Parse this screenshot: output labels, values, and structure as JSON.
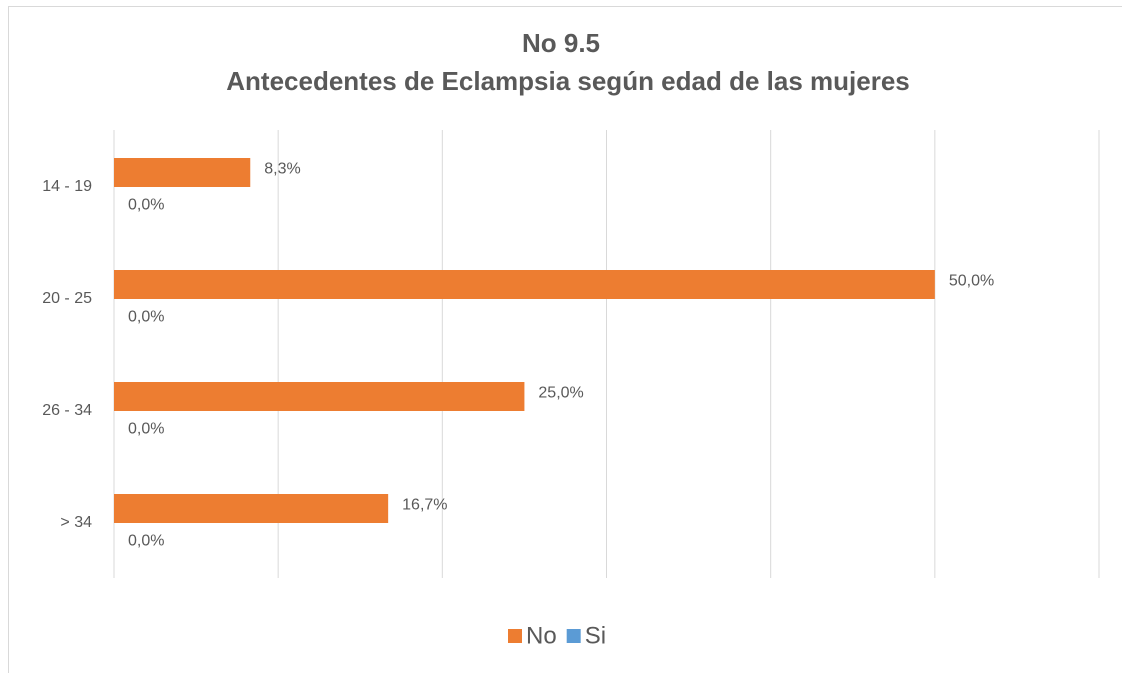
{
  "chart_data": {
    "type": "bar",
    "orientation": "horizontal",
    "title": "No 9.5",
    "subtitle": "Antecedentes de Eclampsia según edad de las mujeres",
    "categories": [
      "14 - 19",
      "20 - 25",
      "26 - 34",
      "> 34"
    ],
    "series": [
      {
        "name": "No",
        "color": "#ED7D31",
        "values": [
          8.3,
          50,
          25,
          16.7
        ],
        "value_labels": [
          "8,3%",
          "50,0%",
          "25,0%",
          "16,7%"
        ]
      },
      {
        "name": "Si",
        "color": "#5B9BD5",
        "values": [
          0,
          0,
          0,
          0
        ],
        "value_labels": [
          "0,0%",
          "0,0%",
          "0,0%",
          "0,0%"
        ]
      }
    ],
    "xlim": [
      0,
      60
    ],
    "xticks": [
      0,
      10,
      20,
      30,
      40,
      50,
      60
    ],
    "grid": true,
    "legend": "bottom"
  }
}
